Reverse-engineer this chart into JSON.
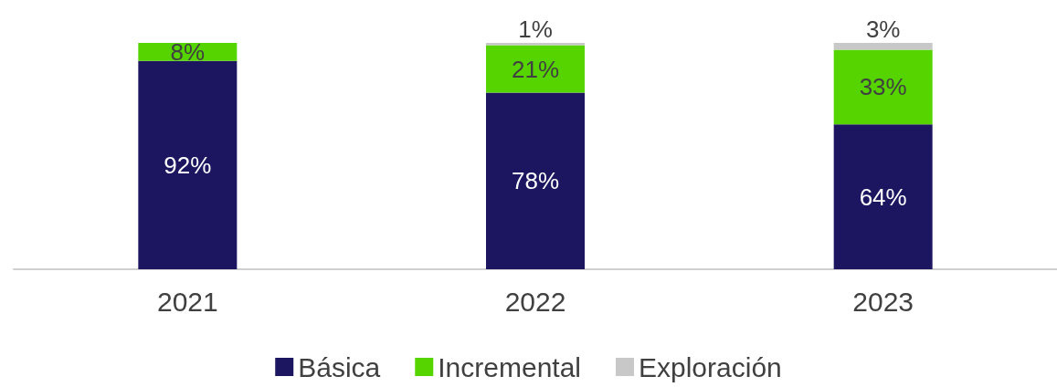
{
  "chart_data": {
    "type": "bar",
    "categories": [
      "2021",
      "2022",
      "2023"
    ],
    "stacked": true,
    "legend": "bottom",
    "series": [
      {
        "name": "Básica",
        "color": "#1c1660",
        "values": [
          92,
          78,
          64
        ],
        "value_labels": [
          "92%",
          "78%",
          "64%"
        ]
      },
      {
        "name": "Incremental",
        "color": "#55d400",
        "values": [
          8,
          21,
          33
        ],
        "value_labels": [
          "8%",
          "21%",
          "33%"
        ]
      },
      {
        "name": "Exploración",
        "color": "#c8c8c8",
        "values": [
          null,
          1,
          3
        ],
        "value_labels": [
          null,
          "1%",
          "3%"
        ]
      }
    ]
  }
}
